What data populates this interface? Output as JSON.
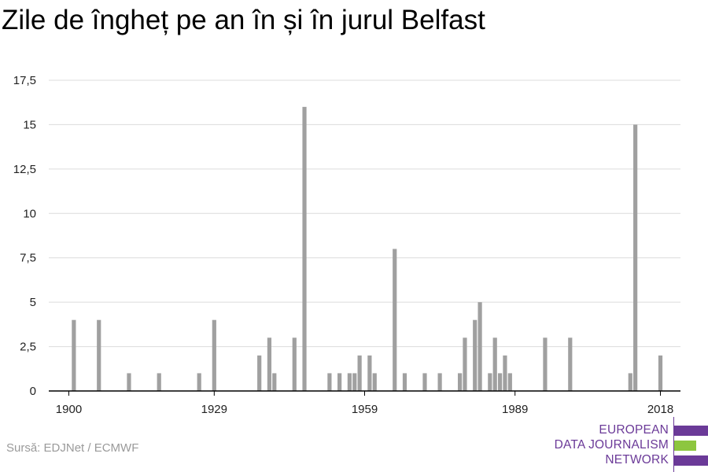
{
  "title": "Zile de îngheț pe an în și în jurul Belfast",
  "source": "Sursă: EDJNet / ECMWF",
  "logo": {
    "lines": [
      "EUROPEAN",
      "DATA JOURNALISM",
      "NETWORK"
    ],
    "color": "#6b3a98",
    "accent": "#8dc63f"
  },
  "chart_data": {
    "type": "bar",
    "title": "Zile de îngheț pe an în și în jurul Belfast",
    "xlabel": "",
    "ylabel": "",
    "bar_color": "#a0a0a0",
    "xlim": [
      1896,
      2022
    ],
    "ylim": [
      0,
      17.5
    ],
    "x_ticks": [
      1900,
      1929,
      1959,
      1989,
      2018
    ],
    "y_ticks": [
      0,
      2.5,
      5,
      7.5,
      10,
      12.5,
      15,
      17.5
    ],
    "y_tick_labels": [
      "0",
      "2,5",
      "5",
      "7,5",
      "10",
      "12,5",
      "15",
      "17,5"
    ],
    "grid": true,
    "x": [
      1901,
      1906,
      1912,
      1918,
      1926,
      1929,
      1938,
      1940,
      1941,
      1945,
      1947,
      1952,
      1954,
      1956,
      1957,
      1958,
      1960,
      1961,
      1965,
      1967,
      1971,
      1974,
      1978,
      1979,
      1981,
      1982,
      1984,
      1985,
      1986,
      1987,
      1988,
      1995,
      2000,
      2012,
      2013,
      2018
    ],
    "values": [
      4,
      4,
      1,
      1,
      1,
      4,
      2,
      3,
      1,
      3,
      16,
      1,
      1,
      1,
      1,
      2,
      2,
      1,
      8,
      1,
      1,
      1,
      1,
      3,
      4,
      5,
      1,
      3,
      1,
      2,
      1,
      3,
      3,
      1,
      15,
      2
    ]
  }
}
